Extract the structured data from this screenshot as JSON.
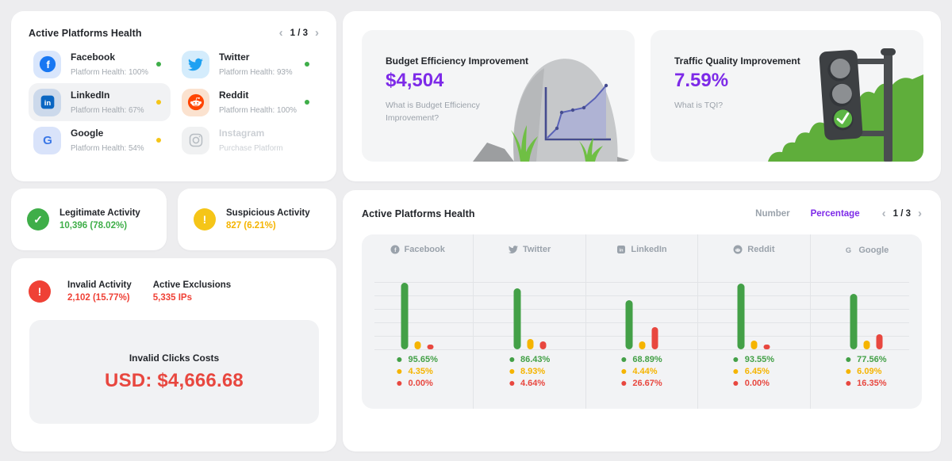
{
  "icons": {
    "chevron_left": "‹",
    "chevron_right": "›",
    "check": "✓",
    "exclamation": "!"
  },
  "colors": {
    "accent_purple": "#7d2ae8",
    "green": "#3fae49",
    "yellow": "#f5b400",
    "red": "#ef4136"
  },
  "platforms_card": {
    "title": "Active Platforms Health",
    "pagination": {
      "label": "1 / 3"
    },
    "items": [
      {
        "name": "Facebook",
        "subtitle": "Platform Health: 100%",
        "status": "green"
      },
      {
        "name": "Twitter",
        "subtitle": "Platform Health: 93%",
        "status": "green"
      },
      {
        "name": "LinkedIn",
        "subtitle": "Platform Health: 67%",
        "status": "yellow"
      },
      {
        "name": "Reddit",
        "subtitle": "Platform Health: 100%",
        "status": "green"
      },
      {
        "name": "Google",
        "subtitle": "Platform Health: 54%",
        "status": "yellow"
      },
      {
        "name": "Instagram",
        "subtitle": "Purchase Platform",
        "status": "none"
      }
    ]
  },
  "insights": {
    "budget": {
      "title": "Budget Efficiency Improvement",
      "value": "$4,504",
      "link": "What is Budget Efficiency Improvement?"
    },
    "traffic": {
      "title": "Traffic Quality Improvement",
      "value": "7.59%",
      "link": "What is TQI?"
    }
  },
  "stats": {
    "legitimate": {
      "title": "Legitimate Activity",
      "value": "10,396 (78.02%)"
    },
    "suspicious": {
      "title": "Suspicious Activity",
      "value": "827 (6.21%)"
    },
    "invalid": {
      "title": "Invalid Activity",
      "value": "2,102 (15.77%)"
    },
    "exclusions": {
      "title": "Active Exclusions",
      "value": "5,335 IPs"
    },
    "costs": {
      "title": "Invalid Clicks Costs",
      "value": "USD: $4,666.68"
    }
  },
  "chart_card": {
    "title": "Active Platforms Health",
    "tabs": {
      "number": "Number",
      "percentage": "Percentage",
      "active": "Percentage"
    },
    "pagination": {
      "label": "1 / 3"
    },
    "chart_data": {
      "type": "bar",
      "categories": [
        "Facebook",
        "Twitter",
        "LinkedIn",
        "Reddit",
        "Google"
      ],
      "series": [
        {
          "name": "Legitimate",
          "color": "#43a047",
          "values": [
            95.65,
            86.43,
            68.89,
            93.55,
            77.56
          ],
          "labels": [
            "95.65%",
            "86.43%",
            "68.89%",
            "93.55%",
            "77.56%"
          ]
        },
        {
          "name": "Suspicious",
          "color": "#f5b400",
          "values": [
            4.35,
            8.93,
            4.44,
            6.45,
            6.09
          ],
          "labels": [
            "4.35%",
            "8.93%",
            "4.44%",
            "6.45%",
            "6.09%"
          ]
        },
        {
          "name": "Invalid",
          "color": "#e8473f",
          "values": [
            0.0,
            4.64,
            26.67,
            0.0,
            16.35
          ],
          "labels": [
            "0.00%",
            "4.64%",
            "26.67%",
            "0.00%",
            "16.35%"
          ]
        }
      ],
      "ylim": [
        0,
        100
      ],
      "grid": true,
      "legend_position": "below-columns"
    }
  }
}
